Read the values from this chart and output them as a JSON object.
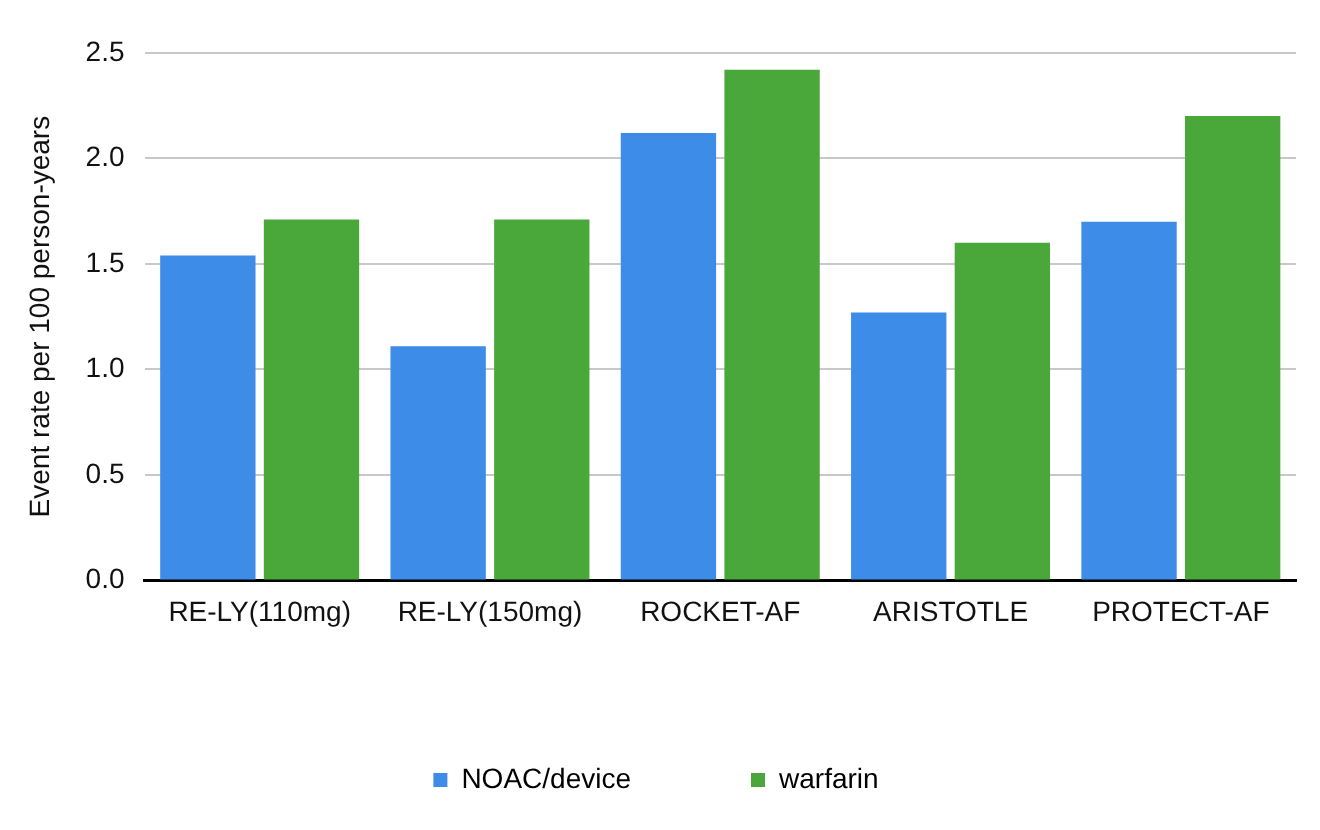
{
  "chart_data": {
    "type": "bar",
    "ylabel": "Event rate per 100 person-years",
    "categories": [
      "RE-LY(110mg)",
      "RE-LY(150mg)",
      "ROCKET-AF",
      "ARISTOTLE",
      "PROTECT-AF"
    ],
    "series": [
      {
        "name": "NOAC/device",
        "color": "#3d8ce8",
        "values": [
          1.54,
          1.11,
          2.12,
          1.27,
          1.7
        ]
      },
      {
        "name": "warfarin",
        "color": "#4aa83a",
        "values": [
          1.71,
          1.71,
          2.42,
          1.6,
          2.2
        ]
      }
    ],
    "ylim": [
      0,
      2.5
    ],
    "yticks": [
      {
        "value": 0,
        "label": "0.0"
      },
      0.5,
      {
        "value": 1,
        "label": "1.0"
      },
      1.5,
      {
        "value": 2,
        "label": "2.0"
      },
      2.5
    ],
    "grid": "y",
    "legend": "bottom"
  }
}
